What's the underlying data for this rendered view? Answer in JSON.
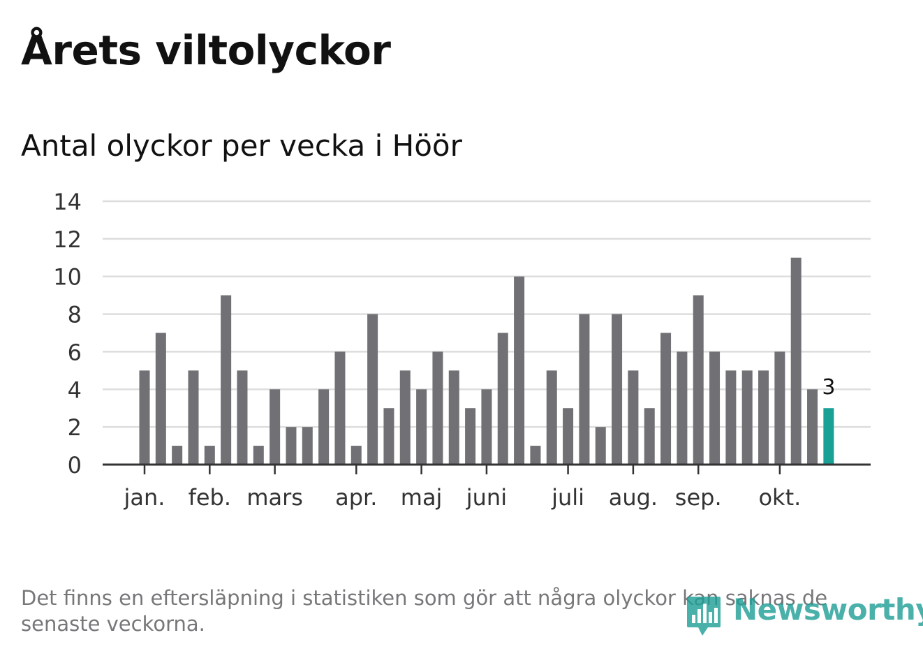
{
  "title": "Årets viltolyckor",
  "subtitle": "Antal olyckor per vecka i Höör",
  "footnote": "Det finns en eftersläpning i statistiken som gör att några olyckor kan saknas de senaste veckorna.",
  "logo": {
    "text": "Newsworthy",
    "icon": "bar-chart-pin-icon"
  },
  "colors": {
    "bar": "#707075",
    "highlight": "#1aa195",
    "grid": "#dddddd",
    "axis": "#333333"
  },
  "chart_data": {
    "type": "bar",
    "title": "Antal olyckor per vecka i Höör",
    "xlabel": "",
    "ylabel": "",
    "ylim": [
      0,
      14
    ],
    "yticks": [
      0,
      2,
      4,
      6,
      8,
      10,
      12,
      14
    ],
    "grid": true,
    "values": [
      5,
      7,
      1,
      5,
      1,
      9,
      5,
      1,
      4,
      2,
      2,
      4,
      6,
      1,
      8,
      3,
      5,
      4,
      6,
      5,
      3,
      4,
      7,
      10,
      1,
      5,
      3,
      8,
      2,
      8,
      5,
      3,
      7,
      6,
      9,
      6,
      5,
      5,
      5,
      6,
      11,
      4,
      3
    ],
    "highlight_index": 42,
    "highlight_label": "3",
    "month_labels": [
      {
        "label": "jan.",
        "at_bar": 0.5
      },
      {
        "label": "feb.",
        "at_bar": 4.5
      },
      {
        "label": "mars",
        "at_bar": 8.5
      },
      {
        "label": "apr.",
        "at_bar": 13.5
      },
      {
        "label": "maj",
        "at_bar": 17.5
      },
      {
        "label": "juni",
        "at_bar": 21.5
      },
      {
        "label": "juli",
        "at_bar": 26.5
      },
      {
        "label": "aug.",
        "at_bar": 30.5
      },
      {
        "label": "sep.",
        "at_bar": 34.5
      },
      {
        "label": "okt.",
        "at_bar": 39.5
      }
    ]
  }
}
